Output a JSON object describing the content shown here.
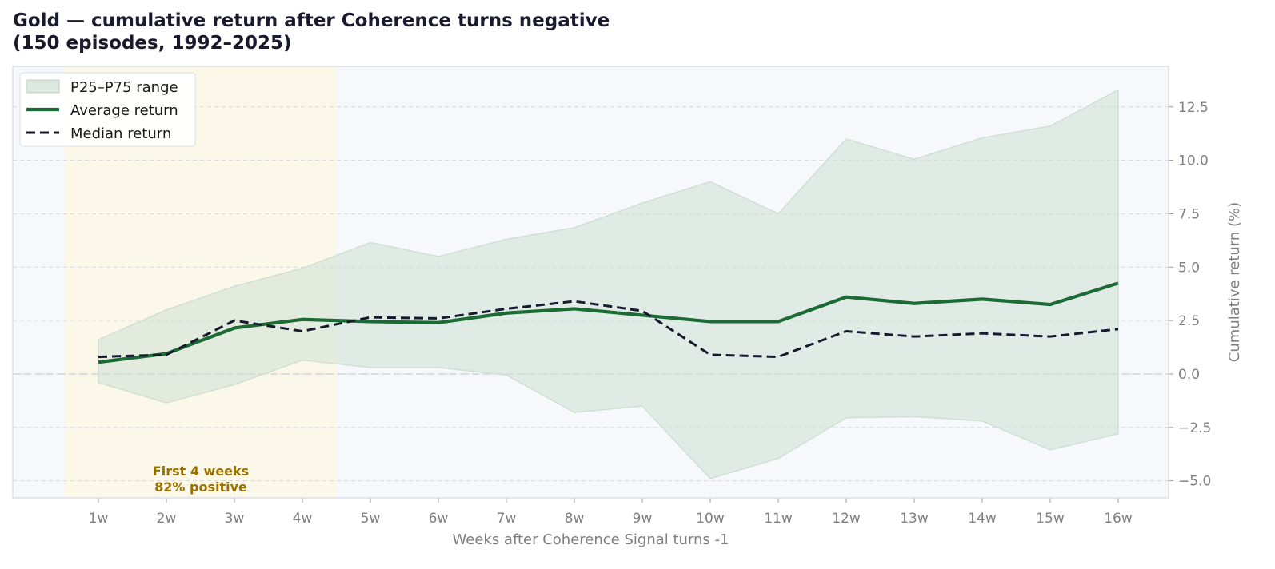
{
  "title": {
    "line1": "Gold — cumulative return after Coherence turns negative",
    "line2": "(150 episodes, 1992–2025)"
  },
  "colors": {
    "average": "#1c6b34",
    "median": "#161a2e",
    "band_fill": "#cfe0d3",
    "highlight": "#fbf8ea",
    "plot_bg": "#f6f8fc",
    "annotation": "#9a7200",
    "tick": "#7f7f7f"
  },
  "annotation": {
    "line1": "First 4 weeks",
    "line2": "82% positive"
  },
  "chart_data": {
    "type": "line",
    "title": "Gold — cumulative return after Coherence turns negative (150 episodes, 1992–2025)",
    "xlabel": "Weeks after Coherence Signal turns -1",
    "ylabel": "Cumulative return (%)",
    "categories": [
      "1w",
      "2w",
      "3w",
      "4w",
      "5w",
      "6w",
      "7w",
      "8w",
      "9w",
      "10w",
      "11w",
      "12w",
      "13w",
      "14w",
      "15w",
      "16w"
    ],
    "ylim": [
      -5.8,
      14.4
    ],
    "yticks": [
      -5.0,
      -2.5,
      0.0,
      2.5,
      5.0,
      7.5,
      10.0,
      12.5
    ],
    "ytick_labels": [
      "−5.0",
      "−2.5",
      "0.0",
      "2.5",
      "5.0",
      "7.5",
      "10.0",
      "12.5"
    ],
    "grid": true,
    "legend_position": "top-left",
    "highlight_range": [
      "1w",
      "4w"
    ],
    "series": [
      {
        "name": "P25–P75 range",
        "kind": "band",
        "lower": [
          -0.4,
          -1.35,
          -0.5,
          0.65,
          0.3,
          0.3,
          -0.05,
          -1.8,
          -1.5,
          -4.9,
          -3.95,
          -2.05,
          -2.0,
          -2.2,
          -3.55,
          -2.8
        ],
        "upper": [
          1.6,
          3.0,
          4.1,
          4.95,
          6.15,
          5.5,
          6.3,
          6.85,
          8.0,
          9.0,
          7.5,
          11.0,
          10.05,
          11.05,
          11.6,
          13.3
        ]
      },
      {
        "name": "Average return",
        "kind": "line",
        "values": [
          0.55,
          0.95,
          2.15,
          2.55,
          2.45,
          2.4,
          2.85,
          3.05,
          2.75,
          2.45,
          2.45,
          3.6,
          3.3,
          3.5,
          3.25,
          4.25
        ]
      },
      {
        "name": "Median return",
        "kind": "dashed",
        "values": [
          0.8,
          0.9,
          2.5,
          2.0,
          2.65,
          2.6,
          3.05,
          3.4,
          2.95,
          0.9,
          0.8,
          2.0,
          1.75,
          1.9,
          1.75,
          2.1
        ]
      }
    ]
  }
}
